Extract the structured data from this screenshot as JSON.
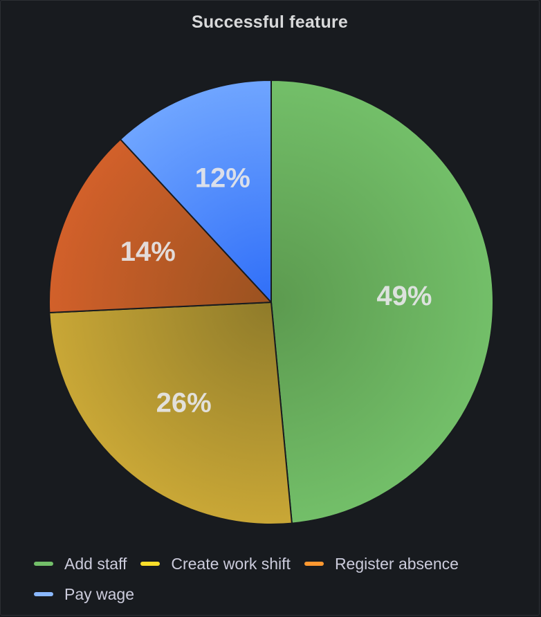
{
  "panel": {
    "title": "Successful feature"
  },
  "chart_data": {
    "type": "pie",
    "title": "Successful feature",
    "legend_placement": "bottom-left",
    "slices": [
      {
        "name": "Add staff",
        "value": 49,
        "label": "49%",
        "color": "#73bf69",
        "color_dark": "#5c9a4f"
      },
      {
        "name": "Create work shift",
        "value": 26,
        "label": "26%",
        "color": "#c9a736",
        "color_dark": "#8f7b2a",
        "legend_color": "#fade2a"
      },
      {
        "name": "Register absence",
        "value": 14,
        "label": "14%",
        "color": "#d2602a",
        "color_dark": "#9a5220",
        "legend_color": "#ff9830"
      },
      {
        "name": "Pay wage",
        "value": 12,
        "label": "12%",
        "color": "#6fa5ff",
        "color_dark": "#2f6ef8",
        "legend_color": "#8ab8ff"
      }
    ]
  },
  "legend": {
    "items": [
      {
        "label": "Add staff",
        "color": "#73bf69"
      },
      {
        "label": "Create work shift",
        "color": "#fade2a"
      },
      {
        "label": "Register absence",
        "color": "#ff9830"
      },
      {
        "label": "Pay wage",
        "color": "#8ab8ff"
      }
    ]
  }
}
